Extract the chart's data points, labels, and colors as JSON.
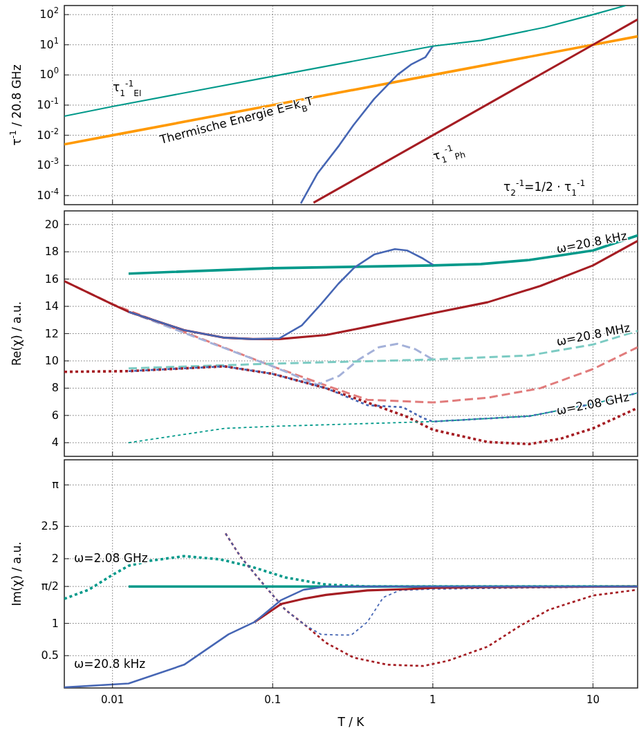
{
  "chart_data": [
    {
      "type": "line",
      "ylabel": "τ$^{-1}$ / 20.8 GHz",
      "log": "xy",
      "grid": true,
      "tick_labels": "y",
      "xlim": [
        0.005,
        19
      ],
      "xticks": [
        0.01,
        0.1,
        1,
        10
      ],
      "ylim": [
        5e-05,
        200
      ],
      "yticks": [
        {
          "value": 0.0001,
          "label": "10$^{-4}$"
        },
        {
          "value": 0.001,
          "label": "10$^{-3}$"
        },
        {
          "value": 0.01,
          "label": "10$^{-2}$"
        },
        {
          "value": 0.1,
          "label": "10$^{-1}$"
        },
        {
          "value": 1,
          "label": "10$^{0}$"
        },
        {
          "value": 10,
          "label": "10$^{1}$"
        },
        {
          "value": 100,
          "label": "10$^{2}$"
        }
      ],
      "annotations": [
        "τ$_{1}$$^{-1}$$_{El}$",
        "Thermische Energie E=k$_{B}$T",
        "τ$_{1}$$^{-1}$$_{Ph}$",
        "τ$_{2}$$^{-1}$=1/2 · τ$_{1}$$^{-1}$"
      ],
      "series": [
        {
          "color": "#ff9900",
          "line_style": "solid",
          "x": [
            0.005,
            0.01,
            0.1,
            1,
            10,
            19
          ],
          "values": [
            0.005,
            0.01,
            0.1,
            1,
            10,
            19
          ]
        },
        {
          "color": "#a51d23",
          "line_style": "solid",
          "x": [
            0.18,
            0.3,
            1,
            3,
            10,
            19
          ],
          "values": [
            5.8e-05,
            0.00027,
            0.01,
            0.27,
            10,
            69
          ]
        },
        {
          "color": "#4666b4",
          "line_style": "solid",
          "x": [
            0.15,
            0.19,
            0.26,
            0.32,
            0.43,
            0.6,
            0.73,
            0.9,
            1
          ],
          "values": [
            5.5e-05,
            0.00053,
            0.0046,
            0.022,
            0.16,
            1.0,
            2.2,
            3.9,
            9
          ]
        },
        {
          "color": "#00998a",
          "line_style": "solid",
          "x": [
            0.005,
            0.01,
            0.1,
            1,
            2,
            5,
            10,
            16
          ],
          "values": [
            0.043,
            0.09,
            0.9,
            9,
            14,
            38,
            100,
            200
          ]
        }
      ]
    },
    {
      "type": "line",
      "ylabel": "Re(χ) / a.u.",
      "log": "x",
      "grid": true,
      "tick_labels": "y",
      "xlim": [
        0.005,
        19
      ],
      "xticks": [
        0.01,
        0.1,
        1,
        10
      ],
      "ylim": [
        3,
        21
      ],
      "yticks": [
        4,
        6,
        8,
        10,
        12,
        14,
        16,
        18,
        20
      ],
      "annotations": [
        "ω=20.8 kHz",
        "ω=20.8 MHz",
        "ω=2.08 GHz"
      ],
      "series": [
        {
          "color": "#e17c7c",
          "line_style": "dashed",
          "x": [
            0.005,
            0.01,
            0.1,
            0.215,
            0.39,
            1,
            2.2,
            4.7,
            10,
            19
          ],
          "values": [
            15.85,
            14.15,
            9.6,
            8.2,
            7.15,
            6.95,
            7.3,
            8.0,
            9.4,
            11.0
          ]
        },
        {
          "color": "#a4b1d9",
          "line_style": "dashed",
          "x": [
            0.0126,
            0.1,
            0.19,
            0.26,
            0.345,
            0.46,
            0.6,
            0.78,
            1
          ],
          "values": [
            13.6,
            9.6,
            8.25,
            8.9,
            10.1,
            11.0,
            11.25,
            10.85,
            10.1
          ]
        },
        {
          "color": "#7ccbc3",
          "line_style": "dashed",
          "x": [
            0.0126,
            0.1,
            1,
            4,
            10,
            19
          ],
          "values": [
            9.45,
            9.8,
            10.1,
            10.4,
            11.2,
            12.2
          ]
        },
        {
          "color": "#a51d23",
          "line_style": "dotted",
          "x": [
            0.005,
            0.0126,
            0.05,
            0.1,
            0.215,
            0.39,
            0.69,
            1,
            2.2,
            4,
            6.3,
            10,
            19
          ],
          "values": [
            9.2,
            9.25,
            9.6,
            9.05,
            8.0,
            6.95,
            5.9,
            4.95,
            4.05,
            3.9,
            4.3,
            5.05,
            6.55
          ]
        },
        {
          "color": "#4666b4",
          "line_style": "dotted",
          "x": [
            0.0126,
            0.05,
            0.1,
            0.215,
            0.39,
            0.65,
            0.87,
            1,
            4,
            10,
            19
          ],
          "values": [
            9.25,
            9.6,
            9.05,
            8.0,
            6.75,
            6.6,
            5.8,
            5.55,
            5.95,
            6.85,
            7.65
          ]
        },
        {
          "color": "#00998a",
          "line_style": "dotted",
          "x": [
            0.0126,
            0.05,
            0.1,
            1,
            4,
            10,
            19
          ],
          "values": [
            4.0,
            5.05,
            5.2,
            5.55,
            5.95,
            6.85,
            7.65
          ]
        },
        {
          "color": "#00998a",
          "line_style": "solid",
          "x": [
            0.0126,
            0.1,
            1,
            2,
            4,
            6,
            10,
            19
          ],
          "values": [
            16.4,
            16.8,
            17.0,
            17.1,
            17.4,
            17.7,
            18.1,
            19.2
          ]
        },
        {
          "color": "#a51d23",
          "line_style": "solid",
          "x": [
            0.005,
            0.01,
            0.0126,
            0.028,
            0.05,
            0.075,
            0.11,
            0.215,
            0.39,
            1,
            2.2,
            4.7,
            10,
            19
          ],
          "values": [
            15.85,
            14.15,
            13.6,
            12.25,
            11.7,
            11.6,
            11.6,
            11.9,
            12.5,
            13.5,
            14.3,
            15.5,
            17.0,
            18.8
          ]
        },
        {
          "color": "#4666b4",
          "line_style": "solid",
          "x": [
            0.0126,
            0.028,
            0.05,
            0.075,
            0.11,
            0.152,
            0.2,
            0.257,
            0.324,
            0.43,
            0.58,
            0.69,
            0.87,
            1
          ],
          "values": [
            13.6,
            12.25,
            11.7,
            11.6,
            11.65,
            12.6,
            14.15,
            15.65,
            16.85,
            17.8,
            18.2,
            18.1,
            17.5,
            17.05
          ]
        }
      ]
    },
    {
      "type": "line",
      "ylabel": "Im(χ) / a.u.",
      "xlabel": "T / K",
      "log": "x",
      "grid": true,
      "xlim": [
        0.005,
        19
      ],
      "xticks": [
        0.01,
        0.1,
        1,
        10
      ],
      "ylim": [
        0,
        3.53
      ],
      "yticks": [
        0.5,
        1,
        {
          "value": 1.5708,
          "label": "π/2"
        },
        2,
        2.5,
        {
          "value": 3.1416,
          "label": "π"
        }
      ],
      "annotations": [
        "ω=2.08 GHz",
        "ω=20.8 kHz"
      ],
      "series": [
        {
          "color": "#00998a",
          "line_style": "dotted",
          "x": [
            0.005,
            0.0071,
            0.01,
            0.0126,
            0.0174,
            0.028,
            0.047,
            0.075,
            0.12,
            0.215,
            0.39,
            19
          ],
          "values": [
            1.38,
            1.52,
            1.75,
            1.89,
            1.97,
            2.04,
            1.99,
            1.87,
            1.71,
            1.6,
            1.57,
            1.57
          ]
        },
        {
          "color": "#a51d23",
          "line_style": "dotted",
          "x": [
            0.0508,
            0.063,
            0.09,
            0.12,
            0.16,
            0.215,
            0.32,
            0.52,
            0.87,
            1.24,
            2.2,
            3.5,
            5.3,
            10,
            19
          ],
          "values": [
            2.39,
            2.03,
            1.57,
            1.21,
            0.97,
            0.7,
            0.47,
            0.36,
            0.34,
            0.42,
            0.64,
            0.96,
            1.21,
            1.43,
            1.52
          ]
        },
        {
          "color": "#4666b4",
          "line_style": "dotted",
          "x": [
            0.0508,
            0.063,
            0.09,
            0.12,
            0.16,
            0.2,
            0.256,
            0.31,
            0.39,
            0.49,
            0.62,
            1,
            19
          ],
          "values": [
            2.39,
            2.03,
            1.57,
            1.21,
            0.97,
            0.83,
            0.82,
            0.82,
            1.02,
            1.4,
            1.51,
            1.53,
            1.57
          ]
        },
        {
          "color": "#00998a",
          "line_style": "solid",
          "x": [
            0.0126,
            19
          ],
          "values": [
            1.57,
            1.57
          ]
        },
        {
          "color": "#a51d23",
          "line_style": "solid",
          "x": [
            0.077,
            0.113,
            0.156,
            0.215,
            0.39,
            0.69,
            1,
            2.2,
            19
          ],
          "values": [
            1.02,
            1.3,
            1.38,
            1.44,
            1.51,
            1.53,
            1.55,
            1.56,
            1.57
          ]
        },
        {
          "color": "#4666b4",
          "line_style": "solid",
          "x": [
            0.005,
            0.0126,
            0.028,
            0.053,
            0.077,
            0.113,
            0.156,
            0.215,
            19
          ],
          "values": [
            0.01,
            0.07,
            0.36,
            0.83,
            1.02,
            1.36,
            1.52,
            1.57,
            1.57
          ]
        }
      ]
    }
  ]
}
